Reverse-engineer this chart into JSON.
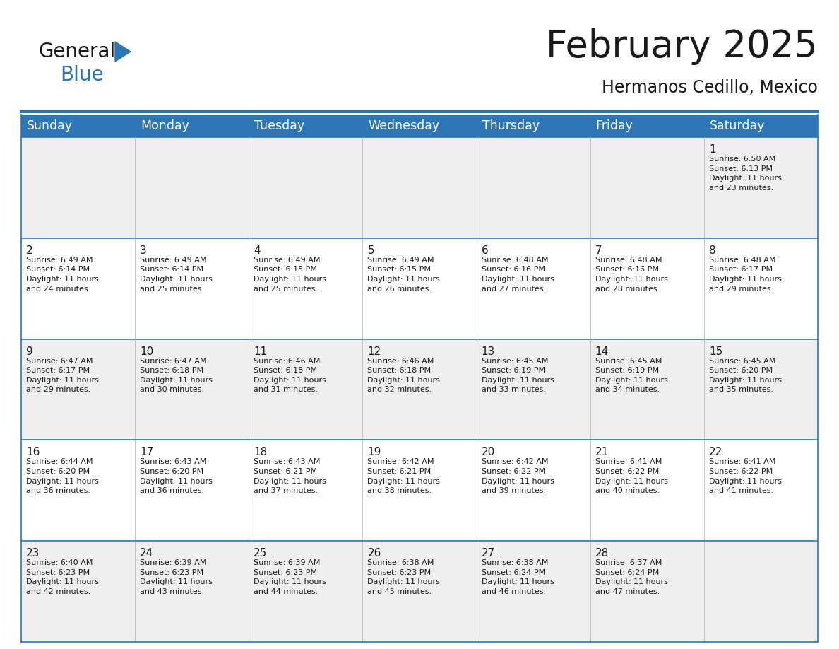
{
  "title": "February 2025",
  "subtitle": "Hermanos Cedillo, Mexico",
  "header_color": "#2E75B6",
  "header_text_color": "#FFFFFF",
  "cell_bg_odd": "#EFEFEF",
  "cell_bg_even": "#FFFFFF",
  "border_color": "#2E75B6",
  "grid_color": "#BBBBBB",
  "text_color": "#1a1a1a",
  "day_headers": [
    "Sunday",
    "Monday",
    "Tuesday",
    "Wednesday",
    "Thursday",
    "Friday",
    "Saturday"
  ],
  "title_fontsize": 38,
  "subtitle_fontsize": 17,
  "header_fontsize": 12.5,
  "day_num_fontsize": 11,
  "cell_text_fontsize": 8.0,
  "logo_color_general": "#1a1a1a",
  "logo_color_blue": "#2E75B6",
  "logo_text_general": "General",
  "logo_text_blue": "Blue",
  "weeks": [
    [
      {
        "day": null,
        "data": ""
      },
      {
        "day": null,
        "data": ""
      },
      {
        "day": null,
        "data": ""
      },
      {
        "day": null,
        "data": ""
      },
      {
        "day": null,
        "data": ""
      },
      {
        "day": null,
        "data": ""
      },
      {
        "day": 1,
        "data": "Sunrise: 6:50 AM\nSunset: 6:13 PM\nDaylight: 11 hours\nand 23 minutes."
      }
    ],
    [
      {
        "day": 2,
        "data": "Sunrise: 6:49 AM\nSunset: 6:14 PM\nDaylight: 11 hours\nand 24 minutes."
      },
      {
        "day": 3,
        "data": "Sunrise: 6:49 AM\nSunset: 6:14 PM\nDaylight: 11 hours\nand 25 minutes."
      },
      {
        "day": 4,
        "data": "Sunrise: 6:49 AM\nSunset: 6:15 PM\nDaylight: 11 hours\nand 25 minutes."
      },
      {
        "day": 5,
        "data": "Sunrise: 6:49 AM\nSunset: 6:15 PM\nDaylight: 11 hours\nand 26 minutes."
      },
      {
        "day": 6,
        "data": "Sunrise: 6:48 AM\nSunset: 6:16 PM\nDaylight: 11 hours\nand 27 minutes."
      },
      {
        "day": 7,
        "data": "Sunrise: 6:48 AM\nSunset: 6:16 PM\nDaylight: 11 hours\nand 28 minutes."
      },
      {
        "day": 8,
        "data": "Sunrise: 6:48 AM\nSunset: 6:17 PM\nDaylight: 11 hours\nand 29 minutes."
      }
    ],
    [
      {
        "day": 9,
        "data": "Sunrise: 6:47 AM\nSunset: 6:17 PM\nDaylight: 11 hours\nand 29 minutes."
      },
      {
        "day": 10,
        "data": "Sunrise: 6:47 AM\nSunset: 6:18 PM\nDaylight: 11 hours\nand 30 minutes."
      },
      {
        "day": 11,
        "data": "Sunrise: 6:46 AM\nSunset: 6:18 PM\nDaylight: 11 hours\nand 31 minutes."
      },
      {
        "day": 12,
        "data": "Sunrise: 6:46 AM\nSunset: 6:18 PM\nDaylight: 11 hours\nand 32 minutes."
      },
      {
        "day": 13,
        "data": "Sunrise: 6:45 AM\nSunset: 6:19 PM\nDaylight: 11 hours\nand 33 minutes."
      },
      {
        "day": 14,
        "data": "Sunrise: 6:45 AM\nSunset: 6:19 PM\nDaylight: 11 hours\nand 34 minutes."
      },
      {
        "day": 15,
        "data": "Sunrise: 6:45 AM\nSunset: 6:20 PM\nDaylight: 11 hours\nand 35 minutes."
      }
    ],
    [
      {
        "day": 16,
        "data": "Sunrise: 6:44 AM\nSunset: 6:20 PM\nDaylight: 11 hours\nand 36 minutes."
      },
      {
        "day": 17,
        "data": "Sunrise: 6:43 AM\nSunset: 6:20 PM\nDaylight: 11 hours\nand 36 minutes."
      },
      {
        "day": 18,
        "data": "Sunrise: 6:43 AM\nSunset: 6:21 PM\nDaylight: 11 hours\nand 37 minutes."
      },
      {
        "day": 19,
        "data": "Sunrise: 6:42 AM\nSunset: 6:21 PM\nDaylight: 11 hours\nand 38 minutes."
      },
      {
        "day": 20,
        "data": "Sunrise: 6:42 AM\nSunset: 6:22 PM\nDaylight: 11 hours\nand 39 minutes."
      },
      {
        "day": 21,
        "data": "Sunrise: 6:41 AM\nSunset: 6:22 PM\nDaylight: 11 hours\nand 40 minutes."
      },
      {
        "day": 22,
        "data": "Sunrise: 6:41 AM\nSunset: 6:22 PM\nDaylight: 11 hours\nand 41 minutes."
      }
    ],
    [
      {
        "day": 23,
        "data": "Sunrise: 6:40 AM\nSunset: 6:23 PM\nDaylight: 11 hours\nand 42 minutes."
      },
      {
        "day": 24,
        "data": "Sunrise: 6:39 AM\nSunset: 6:23 PM\nDaylight: 11 hours\nand 43 minutes."
      },
      {
        "day": 25,
        "data": "Sunrise: 6:39 AM\nSunset: 6:23 PM\nDaylight: 11 hours\nand 44 minutes."
      },
      {
        "day": 26,
        "data": "Sunrise: 6:38 AM\nSunset: 6:23 PM\nDaylight: 11 hours\nand 45 minutes."
      },
      {
        "day": 27,
        "data": "Sunrise: 6:38 AM\nSunset: 6:24 PM\nDaylight: 11 hours\nand 46 minutes."
      },
      {
        "day": 28,
        "data": "Sunrise: 6:37 AM\nSunset: 6:24 PM\nDaylight: 11 hours\nand 47 minutes."
      },
      {
        "day": null,
        "data": ""
      }
    ]
  ]
}
